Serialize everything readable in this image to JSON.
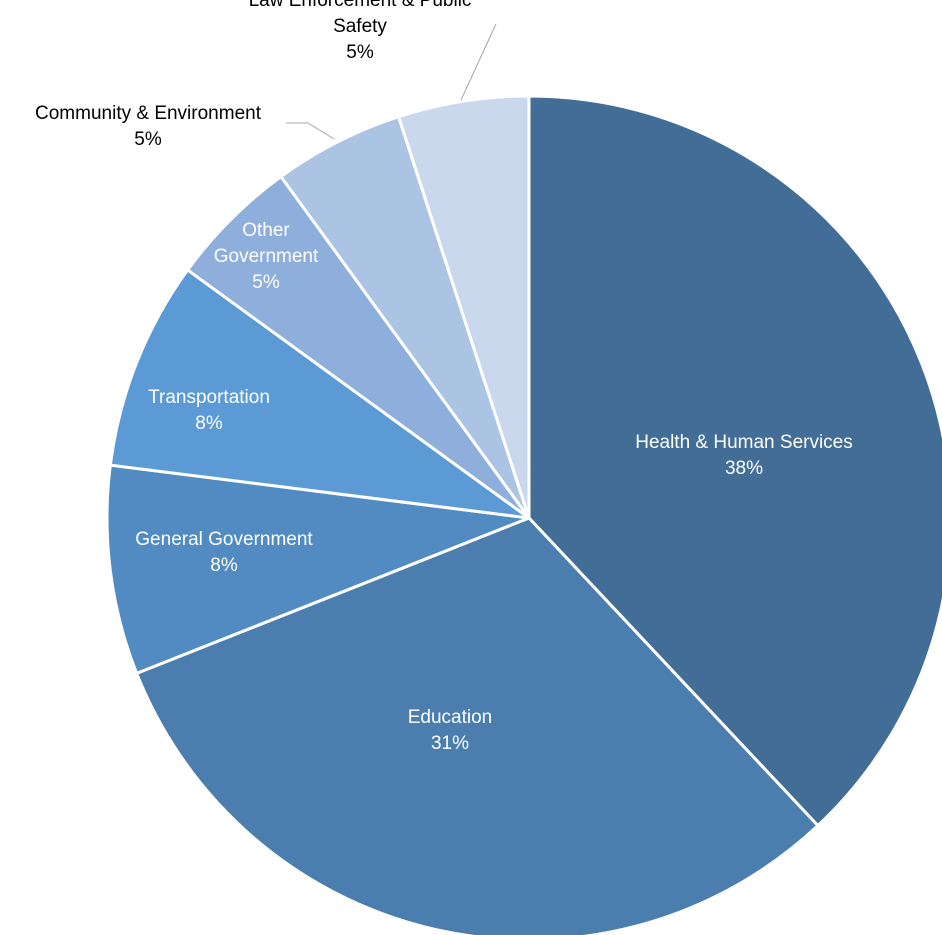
{
  "chart_data": {
    "type": "pie",
    "title": "",
    "start_angle_deg": 0,
    "direction": "clockwise",
    "slices": [
      {
        "name": "Health & Human Services",
        "value": 38,
        "label": "38%",
        "color": "#416d96",
        "label_placement": "inside"
      },
      {
        "name": "Education",
        "value": 31,
        "label": "31%",
        "color": "#4b7eae",
        "label_placement": "inside"
      },
      {
        "name": "General Government",
        "value": 8,
        "label": "8%",
        "color": "#518bc1",
        "label_placement": "inside"
      },
      {
        "name": "Transportation",
        "value": 8,
        "label": "8%",
        "color": "#5b9ad5",
        "label_placement": "inside"
      },
      {
        "name": "Other Government",
        "value": 5,
        "label": "5%",
        "color": "#8eafdb",
        "label_placement": "inside"
      },
      {
        "name": "Community & Environment",
        "value": 5,
        "label": "5%",
        "color": "#abc4e4",
        "label_placement": "outside"
      },
      {
        "name": "Law Enforcement & Public Safety",
        "value": 5,
        "label": "5%",
        "color": "#c9d8ec",
        "label_placement": "outside"
      }
    ]
  }
}
